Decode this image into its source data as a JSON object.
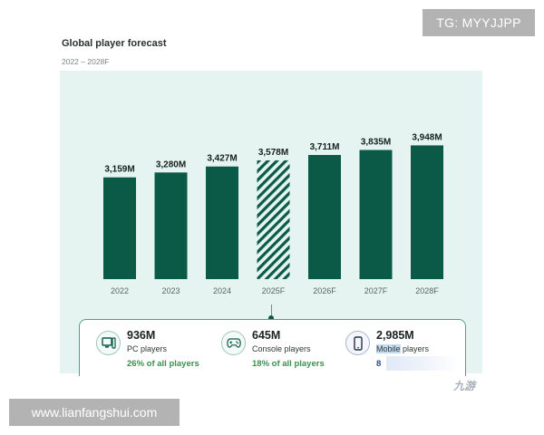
{
  "header": {
    "title": "Global player forecast",
    "subtitle": "2022 – 2028F"
  },
  "chart_data": {
    "type": "bar",
    "title": "Global player forecast",
    "subtitle": "2022 – 2028F",
    "categories": [
      "2022",
      "2023",
      "2024",
      "2025F",
      "2026F",
      "2027F",
      "2028F"
    ],
    "values": [
      3159,
      3280,
      3427,
      3578,
      3711,
      3835,
      3948
    ],
    "value_labels": [
      "3,159M",
      "3,280M",
      "3,427M",
      "3,578M",
      "3,711M",
      "3,835M",
      "3,948M"
    ],
    "forecast_categories": [
      "2025F"
    ],
    "ylim": [
      0,
      4200
    ],
    "grid": false,
    "colors": {
      "bar": "#0b5a47",
      "forecast_hatch": "#0b5a47",
      "background": "#e5f4f0"
    }
  },
  "summary": {
    "pc": {
      "value": "936M",
      "label": "PC players",
      "share": "26% of all players",
      "icon": "desktop-icon"
    },
    "console": {
      "value": "645M",
      "label": "Console players",
      "share": "18% of all players",
      "icon": "gamepad-icon"
    },
    "mobile": {
      "value": "2,985M",
      "label_hl": "Mobile",
      "label_rest": " players",
      "share": "8",
      "icon": "smartphone-icon"
    }
  },
  "watermarks": {
    "top": "TG: MYYJJPP",
    "bottom": "www.lianfangshui.com",
    "logo": "九游"
  },
  "colors": {
    "accent": "#0b5a47",
    "share_green": "#3b8f4f",
    "panel": "#e5f4f0"
  }
}
